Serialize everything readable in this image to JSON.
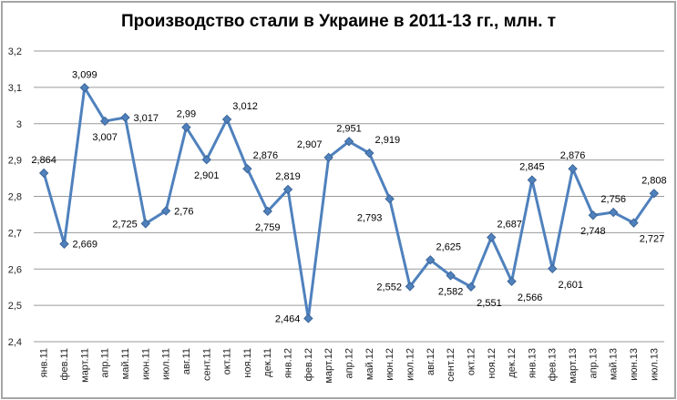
{
  "chart_data": {
    "type": "line",
    "title": "Производство стали в Украине в 2011-13 гг., млн. т",
    "categories": [
      "янв.11",
      "фев.11",
      "март.11",
      "апр.11",
      "май.11",
      "июн.11",
      "июл.11",
      "авг.11",
      "сент.11",
      "окт.11",
      "ноя.11",
      "дек.11",
      "янв.12",
      "фев.12",
      "март.12",
      "апр.12",
      "май.12",
      "июн.12",
      "июл.12",
      "авг.12",
      "сент.12",
      "окт.12",
      "ноя.12",
      "дек.12",
      "янв.13",
      "фев.13",
      "март.13",
      "апр.13",
      "май.13",
      "июн.13",
      "июл.13"
    ],
    "values": [
      2.864,
      2.669,
      3.099,
      3.007,
      3.017,
      2.725,
      2.76,
      2.99,
      2.901,
      3.012,
      2.876,
      2.759,
      2.819,
      2.464,
      2.907,
      2.951,
      2.919,
      2.793,
      2.552,
      2.625,
      2.582,
      2.551,
      2.687,
      2.566,
      2.845,
      2.601,
      2.876,
      2.748,
      2.756,
      2.727,
      2.808
    ],
    "point_labels": [
      "2,864",
      "2,669",
      "3,099",
      "3,007",
      "3,017",
      "2,725",
      "2,76",
      "2,99",
      "2,901",
      "3,012",
      "2,876",
      "2,759",
      "2,819",
      "2,464",
      "2,907",
      "2,951",
      "2,919",
      "2,793",
      "2,552",
      "2,625",
      "2,582",
      "2,551",
      "2,687",
      "2,566",
      "2,845",
      "2,601",
      "2,876",
      "2,748",
      "2,756",
      "2,727",
      "2,808"
    ],
    "label_positions": [
      "above",
      "right",
      "above",
      "below",
      "right",
      "left",
      "right",
      "above",
      "below",
      "above-right",
      "above-right",
      "below",
      "above",
      "left",
      "above-left",
      "above",
      "above-right",
      "below-left",
      "left",
      "above-right",
      "below",
      "below-right",
      "above-right",
      "below-right",
      "above",
      "below-right",
      "above",
      "below",
      "above",
      "below-right",
      "above"
    ],
    "y_ticks": [
      {
        "value": 2.4,
        "label": "2,4"
      },
      {
        "value": 2.5,
        "label": "2,5"
      },
      {
        "value": 2.6,
        "label": "2,6"
      },
      {
        "value": 2.7,
        "label": "2,7"
      },
      {
        "value": 2.8,
        "label": "2,8"
      },
      {
        "value": 2.9,
        "label": "2,9"
      },
      {
        "value": 3.0,
        "label": "3"
      },
      {
        "value": 3.1,
        "label": "3,1"
      },
      {
        "value": 3.2,
        "label": "3,2"
      }
    ],
    "ylim": [
      2.4,
      3.2
    ],
    "grid": true,
    "legend_position": "none",
    "colors": {
      "line": "#4F81BD",
      "marker_border": "#3C6597",
      "grid": "#9a9a9a",
      "axis_text": "#1f1f1f",
      "data_label_text": "#000000",
      "frame_border": "#a6a6a6"
    }
  }
}
